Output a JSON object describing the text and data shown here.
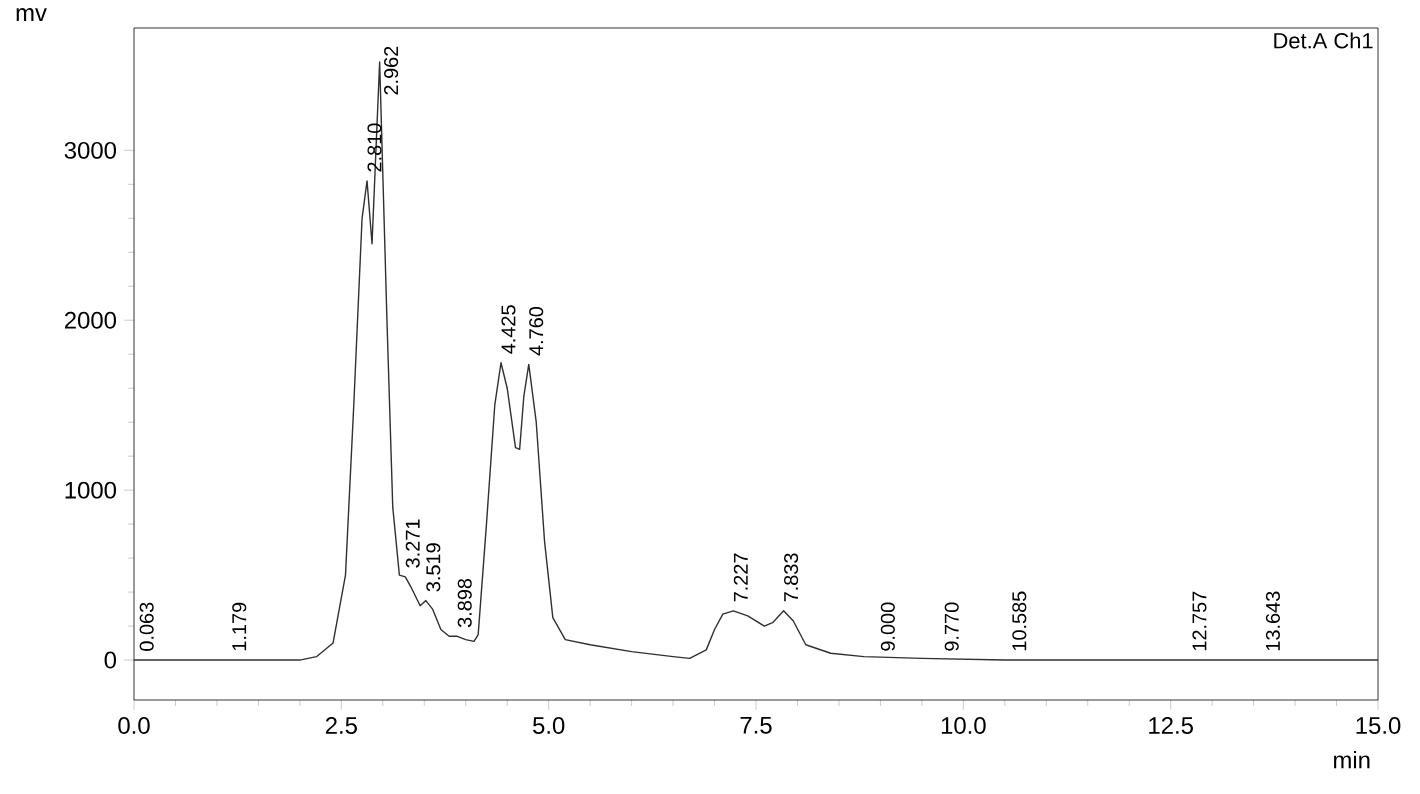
{
  "chart_data": {
    "type": "line",
    "xlabel": "min",
    "ylabel": "mv",
    "x": [
      0,
      2.0,
      2.2,
      2.4,
      2.55,
      2.65,
      2.75,
      2.81,
      2.87,
      2.962,
      3.05,
      3.12,
      3.2,
      3.271,
      3.35,
      3.45,
      3.519,
      3.6,
      3.7,
      3.8,
      3.898,
      4.0,
      4.1,
      4.15,
      4.25,
      4.35,
      4.425,
      4.5,
      4.6,
      4.65,
      4.7,
      4.76,
      4.85,
      4.95,
      5.05,
      5.2,
      5.5,
      6.0,
      6.5,
      6.7,
      6.9,
      7.0,
      7.1,
      7.227,
      7.4,
      7.6,
      7.7,
      7.833,
      7.95,
      8.1,
      8.4,
      8.8,
      9.5,
      10.5,
      12.0,
      15.0
    ],
    "series": [
      {
        "color": "#303030",
        "values": [
          0,
          0,
          20,
          100,
          500,
          1500,
          2600,
          2820,
          2450,
          3520,
          2000,
          900,
          500,
          490,
          420,
          320,
          350,
          300,
          180,
          140,
          140,
          120,
          110,
          150,
          800,
          1500,
          1750,
          1600,
          1250,
          1240,
          1550,
          1740,
          1400,
          700,
          250,
          120,
          90,
          50,
          20,
          10,
          60,
          180,
          270,
          290,
          260,
          200,
          220,
          290,
          230,
          90,
          40,
          20,
          10,
          0,
          0,
          0
        ]
      }
    ],
    "xlim": [
      0,
      15
    ],
    "ylim": [
      -235,
      3720
    ],
    "xticks": [
      {
        "value": 0,
        "label": "0.0"
      },
      {
        "value": 2.5,
        "label": "2.5"
      },
      {
        "value": 5,
        "label": "5.0"
      },
      {
        "value": 7.5,
        "label": "7.5"
      },
      {
        "value": 10,
        "label": "10.0"
      },
      {
        "value": 12.5,
        "label": "12.5"
      },
      {
        "value": 15,
        "label": "15.0"
      }
    ],
    "yticks": [
      0,
      1000,
      2000,
      3000
    ],
    "annotations": [
      "Det.A Ch1",
      {
        "text": "0.063",
        "x": 0.063,
        "y": 0
      },
      {
        "text": "1.179",
        "x": 1.179,
        "y": 0
      },
      {
        "text": "2.810",
        "x": 2.81,
        "y": 2820
      },
      {
        "text": "2.962",
        "x": 2.962,
        "y": 3520
      },
      {
        "text": "3.271",
        "x": 3.271,
        "y": 490
      },
      {
        "text": "3.519",
        "x": 3.519,
        "y": 350
      },
      {
        "text": "3.898",
        "x": 3.898,
        "y": 140
      },
      {
        "text": "4.425",
        "x": 4.425,
        "y": 1750
      },
      {
        "text": "4.760",
        "x": 4.76,
        "y": 1740
      },
      {
        "text": "7.227",
        "x": 7.227,
        "y": 290
      },
      {
        "text": "7.833",
        "x": 7.833,
        "y": 290
      },
      {
        "text": "9.000",
        "x": 9.0,
        "y": 0
      },
      {
        "text": "9.770",
        "x": 9.77,
        "y": 0
      },
      {
        "text": "10.585",
        "x": 10.585,
        "y": 0
      },
      {
        "text": "12.757",
        "x": 12.757,
        "y": 0
      },
      {
        "text": "13.643",
        "x": 13.643,
        "y": 0
      }
    ]
  }
}
